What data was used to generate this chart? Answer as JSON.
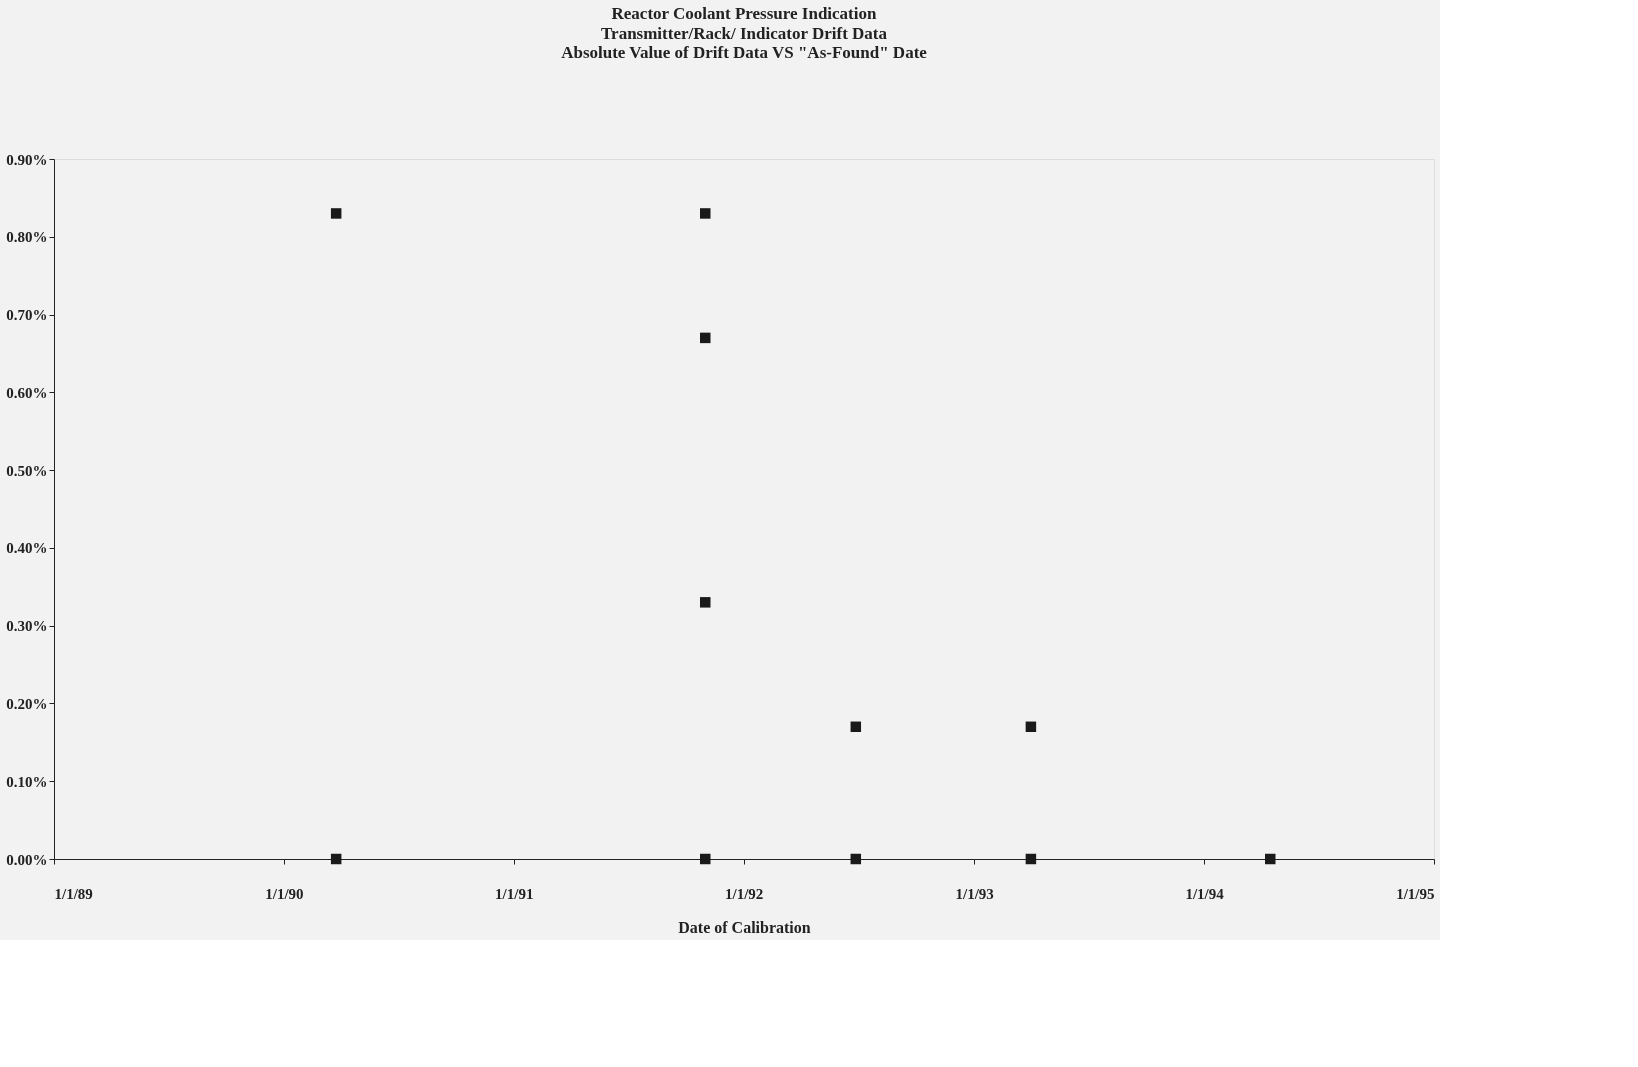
{
  "chart_data": {
    "type": "scatter",
    "title": "Reactor Coolant Pressure Indication",
    "subtitle": "Transmitter/Rack/ Indicator Drift Data\nAbsolute Value of Drift Data VS \"As-Found\" Date",
    "xlabel": "Date of Calibration",
    "x": [
      "1990-03-25",
      "1990-03-25",
      "1991-11-01",
      "1991-11-01",
      "1991-11-01",
      "1991-11-01",
      "1992-06-27",
      "1992-06-27",
      "1993-04-01",
      "1993-04-01",
      "1994-04-16"
    ],
    "values": [
      0.83,
      0,
      0.83,
      0.67,
      0.33,
      0,
      0.17,
      0,
      0.17,
      0,
      0
    ],
    "color": "#1a1a1a",
    "marker": "square",
    "xlim": [
      "1989-01-01",
      "1995-01-01"
    ],
    "xticks": [
      {
        "value": "1989-01-01",
        "label": "1/1/89"
      },
      {
        "value": "1990-01-01",
        "label": "1/1/90"
      },
      {
        "value": "1991-01-01",
        "label": "1/1/91"
      },
      {
        "value": "1992-01-01",
        "label": "1/1/92"
      },
      {
        "value": "1993-01-01",
        "label": "1/1/93"
      },
      {
        "value": "1994-01-01",
        "label": "1/1/94"
      },
      {
        "value": "1995-01-01",
        "label": "1/1/95"
      }
    ],
    "ylim": [
      0,
      0.9
    ],
    "yticks": [
      {
        "value": 0,
        "label": "0.00%"
      },
      {
        "value": 0.1,
        "label": "0.10%"
      },
      {
        "value": 0.2,
        "label": "0.20%"
      },
      {
        "value": 0.3,
        "label": "0.30%"
      },
      {
        "value": 0.4,
        "label": "0.40%"
      },
      {
        "value": 0.5,
        "label": "0.50%"
      },
      {
        "value": 0.6,
        "label": "0.60%"
      },
      {
        "value": 0.7,
        "label": "0.70%"
      },
      {
        "value": 0.8,
        "label": "0.80%"
      },
      {
        "value": 0.9,
        "label": "0.90%"
      }
    ],
    "grid": false
  }
}
